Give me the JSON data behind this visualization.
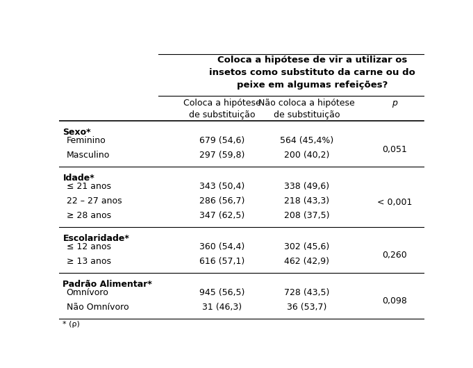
{
  "title": "Coloca a hipótese de vir a utilizar os\ninsetos como substituto da carne ou do\npeixe em algumas refeições?",
  "col1_header": "Coloca a hipótese\nde substituição",
  "col2_header": "Não coloca a hipótese\nde substituição",
  "col3_header": "p",
  "sections": [
    {
      "header": "Sexo*",
      "rows": [
        {
          "label": "Feminino",
          "col1": "679 (54,6)",
          "col2": "564 (45,4%)"
        },
        {
          "label": "Masculino",
          "col1": "297 (59,8)",
          "col2": "200 (40,2)"
        }
      ],
      "p_value": "0,051"
    },
    {
      "header": "Idade*",
      "rows": [
        {
          "label": "≤ 21 anos",
          "col1": "343 (50,4)",
          "col2": "338 (49,6)"
        },
        {
          "label": "22 – 27 anos",
          "col1": "286 (56,7)",
          "col2": "218 (43,3)"
        },
        {
          "label": "≥ 28 anos",
          "col1": "347 (62,5)",
          "col2": "208 (37,5)"
        }
      ],
      "p_value": "< 0,001"
    },
    {
      "header": "Escolaridade*",
      "rows": [
        {
          "label": "≤ 12 anos",
          "col1": "360 (54,4)",
          "col2": "302 (45,6)"
        },
        {
          "label": "≥ 13 anos",
          "col1": "616 (57,1)",
          "col2": "462 (42,9)"
        }
      ],
      "p_value": "0,260"
    },
    {
      "header": "Padrão Alimentar*",
      "rows": [
        {
          "label": "Omnívoro",
          "col1": "945 (56,5)",
          "col2": "728 (43,5)"
        },
        {
          "label": "Não Omnívoro",
          "col1": "31 (46,3)",
          "col2": "36 (53,7)"
        }
      ],
      "p_value": "0,098"
    }
  ],
  "footnote": "* (ρ)",
  "bg_color": "#ffffff",
  "text_color": "#000000",
  "line_color": "#000000",
  "font_size": 9,
  "title_font_size": 9.5
}
